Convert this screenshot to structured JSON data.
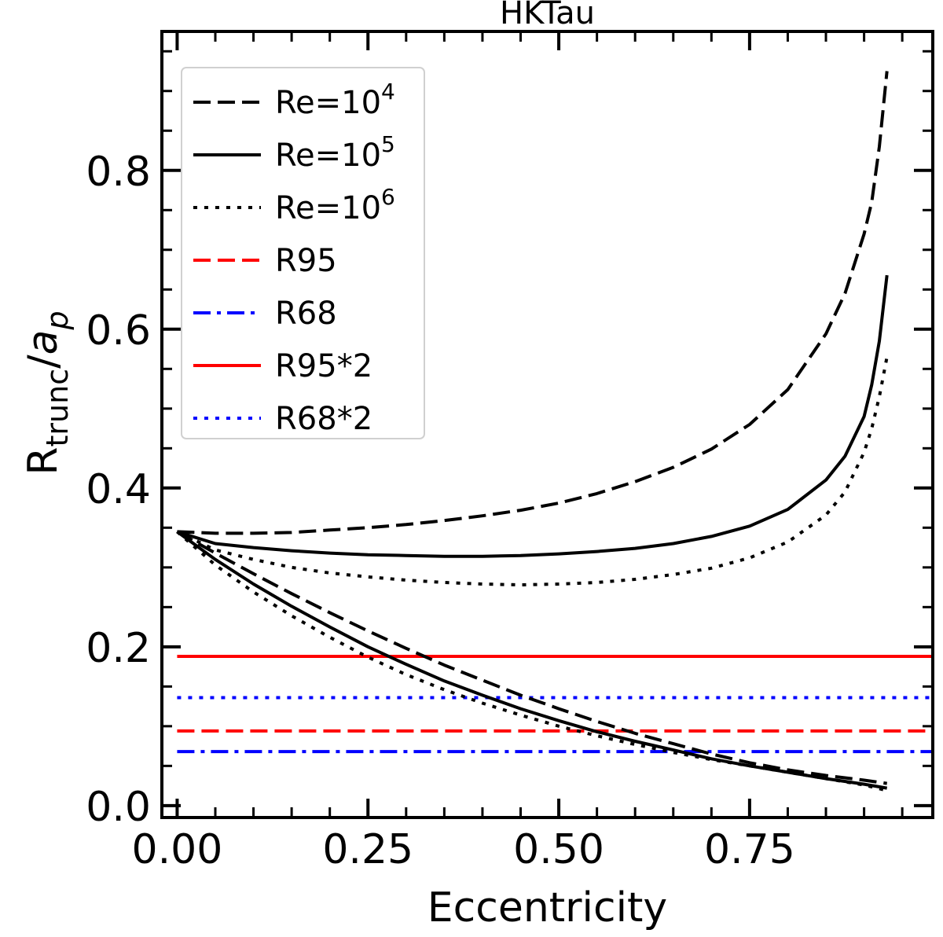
{
  "chart_data": {
    "type": "line",
    "title": "HKTau",
    "xlabel": "Eccentricity",
    "ylabel_main": "R",
    "ylabel_sub": "trunc",
    "ylabel_slash": "/",
    "ylabel_italic": "a",
    "ylabel_italic_sub": "p",
    "xlim": [
      -0.02,
      0.99
    ],
    "ylim": [
      -0.015,
      0.975
    ],
    "xticks": [
      0.0,
      0.25,
      0.5,
      0.75
    ],
    "xtick_labels": [
      "0.00",
      "0.25",
      "0.50",
      "0.75"
    ],
    "yticks": [
      0.0,
      0.2,
      0.4,
      0.6,
      0.8
    ],
    "ytick_labels": [
      "0.0",
      "0.2",
      "0.4",
      "0.6",
      "0.8"
    ],
    "xminor_step": 0.05,
    "yminor_step": 0.05,
    "grid": false,
    "legend_position": "top-left",
    "legend": [
      {
        "key": "re4",
        "base": "Re=10",
        "sup": "4"
      },
      {
        "key": "re5",
        "base": "Re=10",
        "sup": "5"
      },
      {
        "key": "re6",
        "base": "Re=10",
        "sup": "6"
      },
      {
        "key": "r95",
        "base": "R95",
        "sup": ""
      },
      {
        "key": "r68",
        "base": "R68",
        "sup": ""
      },
      {
        "key": "r95x2",
        "base": "R95*2",
        "sup": ""
      },
      {
        "key": "r68x2",
        "base": "R68*2",
        "sup": ""
      }
    ],
    "styles": {
      "re4": {
        "color": "#000000",
        "dash": "dashed"
      },
      "re5": {
        "color": "#000000",
        "dash": "solid"
      },
      "re6": {
        "color": "#000000",
        "dash": "dotted"
      },
      "r95": {
        "color": "#ff0000",
        "dash": "dashed"
      },
      "r68": {
        "color": "#0000ff",
        "dash": "dashdot"
      },
      "r95x2": {
        "color": "#ff0000",
        "dash": "solid"
      },
      "r68x2": {
        "color": "#0000ff",
        "dash": "dotted"
      }
    },
    "series": [
      {
        "key": "re4",
        "branch": "upper",
        "x": [
          0,
          0.05,
          0.1,
          0.15,
          0.2,
          0.25,
          0.3,
          0.35,
          0.4,
          0.45,
          0.5,
          0.55,
          0.6,
          0.65,
          0.7,
          0.75,
          0.8,
          0.85,
          0.875,
          0.9,
          0.91,
          0.92,
          0.93
        ],
        "y": [
          0.345,
          0.343,
          0.343,
          0.344,
          0.347,
          0.35,
          0.354,
          0.359,
          0.365,
          0.372,
          0.381,
          0.393,
          0.408,
          0.426,
          0.449,
          0.48,
          0.524,
          0.594,
          0.645,
          0.72,
          0.76,
          0.83,
          0.925
        ]
      },
      {
        "key": "re5",
        "branch": "upper",
        "x": [
          0,
          0.05,
          0.1,
          0.15,
          0.2,
          0.25,
          0.3,
          0.35,
          0.4,
          0.45,
          0.5,
          0.55,
          0.6,
          0.65,
          0.7,
          0.75,
          0.8,
          0.85,
          0.875,
          0.9,
          0.91,
          0.92,
          0.93
        ],
        "y": [
          0.345,
          0.33,
          0.325,
          0.321,
          0.318,
          0.316,
          0.315,
          0.314,
          0.314,
          0.315,
          0.317,
          0.32,
          0.324,
          0.33,
          0.339,
          0.352,
          0.373,
          0.41,
          0.44,
          0.49,
          0.53,
          0.585,
          0.668
        ]
      },
      {
        "key": "re6",
        "branch": "upper",
        "x": [
          0,
          0.05,
          0.1,
          0.15,
          0.2,
          0.25,
          0.3,
          0.35,
          0.4,
          0.45,
          0.5,
          0.55,
          0.6,
          0.65,
          0.7,
          0.75,
          0.8,
          0.85,
          0.875,
          0.9,
          0.91,
          0.92,
          0.93
        ],
        "y": [
          0.345,
          0.322,
          0.31,
          0.3,
          0.293,
          0.288,
          0.284,
          0.281,
          0.279,
          0.278,
          0.279,
          0.281,
          0.285,
          0.291,
          0.299,
          0.312,
          0.332,
          0.366,
          0.395,
          0.445,
          0.475,
          0.515,
          0.565
        ]
      },
      {
        "key": "re4",
        "branch": "lower",
        "x": [
          0,
          0.05,
          0.1,
          0.15,
          0.2,
          0.25,
          0.3,
          0.35,
          0.4,
          0.45,
          0.5,
          0.55,
          0.6,
          0.65,
          0.7,
          0.75,
          0.8,
          0.85,
          0.9,
          0.93
        ],
        "y": [
          0.345,
          0.318,
          0.292,
          0.267,
          0.243,
          0.22,
          0.198,
          0.177,
          0.158,
          0.139,
          0.122,
          0.106,
          0.091,
          0.078,
          0.065,
          0.054,
          0.045,
          0.038,
          0.032,
          0.028
        ]
      },
      {
        "key": "re5",
        "branch": "lower",
        "x": [
          0,
          0.05,
          0.1,
          0.15,
          0.2,
          0.25,
          0.3,
          0.35,
          0.4,
          0.45,
          0.5,
          0.55,
          0.6,
          0.65,
          0.7,
          0.75,
          0.8,
          0.85,
          0.9,
          0.93
        ],
        "y": [
          0.345,
          0.31,
          0.279,
          0.251,
          0.225,
          0.2,
          0.178,
          0.157,
          0.139,
          0.122,
          0.107,
          0.093,
          0.081,
          0.07,
          0.059,
          0.05,
          0.042,
          0.034,
          0.027,
          0.022
        ]
      },
      {
        "key": "re6",
        "branch": "lower",
        "x": [
          0,
          0.05,
          0.1,
          0.15,
          0.2,
          0.25,
          0.3,
          0.35,
          0.4,
          0.45,
          0.5,
          0.55,
          0.6,
          0.65,
          0.7,
          0.75,
          0.8,
          0.85,
          0.9,
          0.93
        ],
        "y": [
          0.345,
          0.303,
          0.269,
          0.239,
          0.212,
          0.187,
          0.165,
          0.146,
          0.129,
          0.114,
          0.1,
          0.088,
          0.077,
          0.067,
          0.058,
          0.05,
          0.042,
          0.034,
          0.026,
          0.019
        ]
      }
    ],
    "hlines": [
      {
        "key": "r95x2",
        "y": 0.188
      },
      {
        "key": "r68x2",
        "y": 0.136
      },
      {
        "key": "r95",
        "y": 0.094
      },
      {
        "key": "r68",
        "y": 0.068
      }
    ]
  }
}
